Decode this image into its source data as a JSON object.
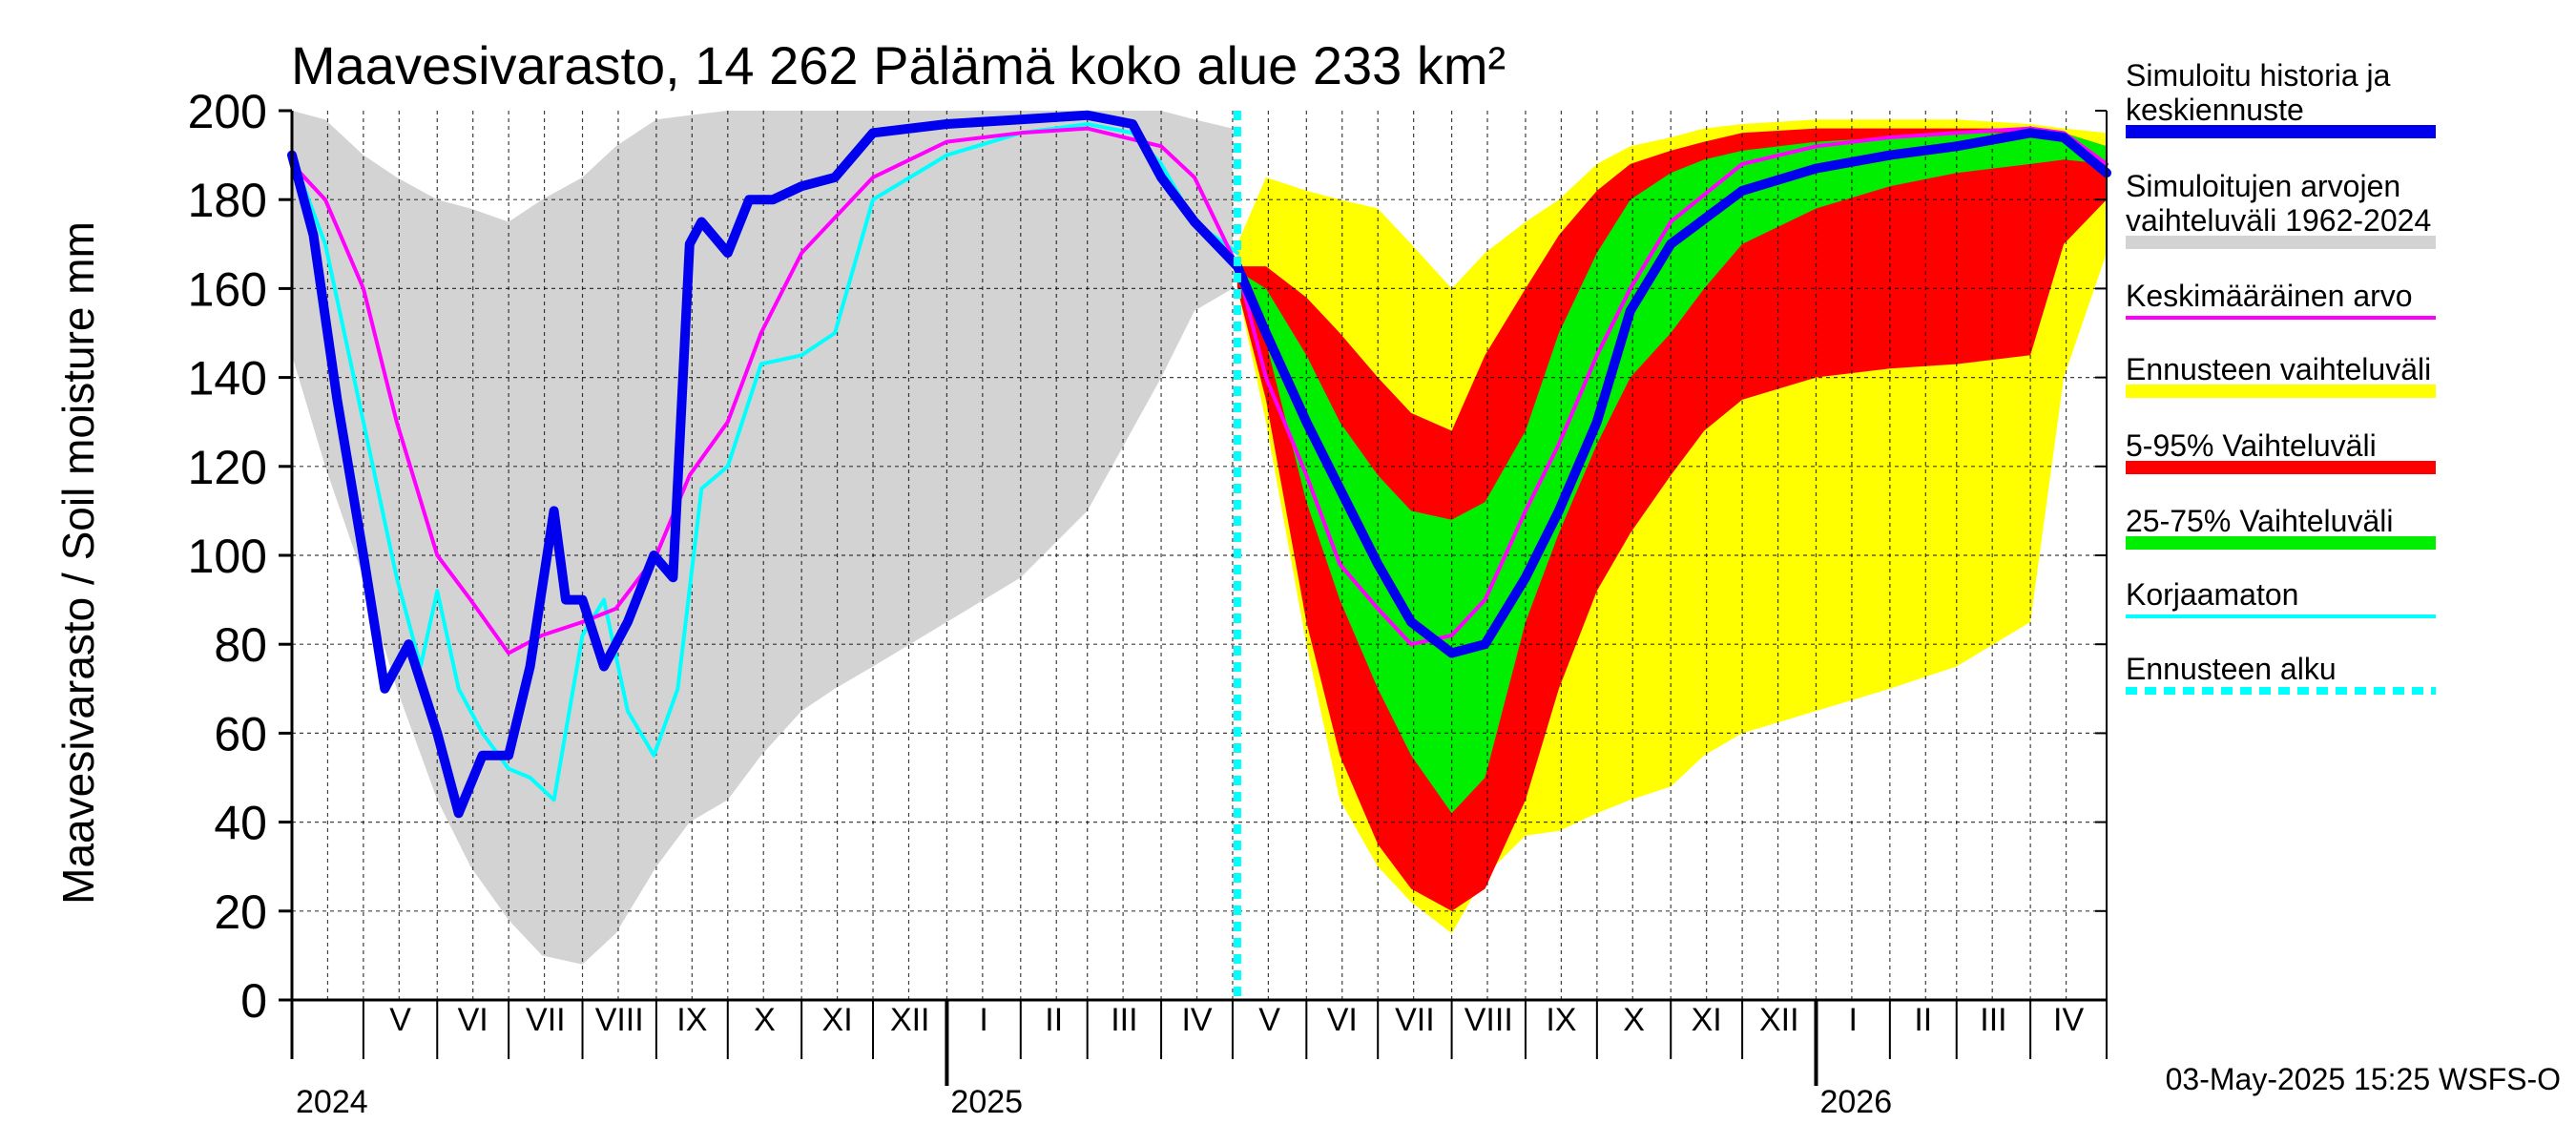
{
  "chart_data": {
    "type": "area",
    "title": "Maavesivarasto, 14 262 Pälämä koko alue 233 km²",
    "ylabel": "Maavesivarasto / Soil moisture   mm",
    "ylim": [
      0,
      200
    ],
    "xlim": [
      "2024-04-01",
      "2026-05-03"
    ],
    "grid": true,
    "y_ticks": [
      "0",
      "20",
      "40",
      "60",
      "80",
      "100",
      "120",
      "140",
      "160",
      "180",
      "200"
    ],
    "months": [
      {
        "label": "V",
        "start": "2024-05-01"
      },
      {
        "label": "VI",
        "start": "2024-06-01"
      },
      {
        "label": "VII",
        "start": "2024-07-01"
      },
      {
        "label": "VIII",
        "start": "2024-08-01"
      },
      {
        "label": "IX",
        "start": "2024-09-01"
      },
      {
        "label": "X",
        "start": "2024-10-01"
      },
      {
        "label": "XI",
        "start": "2024-11-01"
      },
      {
        "label": "XII",
        "start": "2024-12-01"
      },
      {
        "label": "I",
        "start": "2025-01-01"
      },
      {
        "label": "II",
        "start": "2025-02-01"
      },
      {
        "label": "III",
        "start": "2025-03-01"
      },
      {
        "label": "IV",
        "start": "2025-04-01"
      },
      {
        "label": "V",
        "start": "2025-05-01"
      },
      {
        "label": "VI",
        "start": "2025-06-01"
      },
      {
        "label": "VII",
        "start": "2025-07-01"
      },
      {
        "label": "VIII",
        "start": "2025-08-01"
      },
      {
        "label": "IX",
        "start": "2025-09-01"
      },
      {
        "label": "X",
        "start": "2025-10-01"
      },
      {
        "label": "XI",
        "start": "2025-11-01"
      },
      {
        "label": "XII",
        "start": "2025-12-01"
      },
      {
        "label": "I",
        "start": "2026-01-01"
      },
      {
        "label": "II",
        "start": "2026-02-01"
      },
      {
        "label": "III",
        "start": "2026-03-01"
      },
      {
        "label": "IV",
        "start": "2026-04-01"
      }
    ],
    "years": [
      {
        "label": "2024",
        "date": "2024-04-01"
      },
      {
        "label": "2025",
        "date": "2025-01-01"
      },
      {
        "label": "2026",
        "date": "2026-01-01"
      }
    ],
    "forecast_start": "2025-05-03",
    "colors": {
      "history": "#0000ee",
      "range_hist": "#d3d3d3",
      "mean": "#ff00ff",
      "forecast_range": "#ffff00",
      "p5_95": "#ff0000",
      "p25_75": "#00ee00",
      "uncorrected": "#00ffff",
      "forecast_start": "#00ffff",
      "grid": "#000000"
    },
    "series": [
      {
        "name": "Simuloitujen arvojen vaihteluväli 1962-2024",
        "kind": "band",
        "x": [
          "2024-04-01",
          "2024-04-15",
          "2024-05-01",
          "2024-05-15",
          "2024-06-01",
          "2024-06-15",
          "2024-07-01",
          "2024-07-15",
          "2024-08-01",
          "2024-08-15",
          "2024-09-01",
          "2024-09-15",
          "2024-10-01",
          "2024-10-15",
          "2024-11-01",
          "2024-11-15",
          "2024-12-01",
          "2025-01-01",
          "2025-02-01",
          "2025-03-01",
          "2025-04-01",
          "2025-04-15",
          "2025-05-01"
        ],
        "low": [
          145,
          120,
          95,
          70,
          45,
          30,
          18,
          10,
          8,
          15,
          30,
          40,
          45,
          55,
          65,
          70,
          75,
          85,
          95,
          110,
          140,
          155,
          160
        ],
        "high": [
          200,
          198,
          190,
          185,
          180,
          178,
          175,
          180,
          185,
          192,
          198,
          199,
          200,
          200,
          200,
          200,
          200,
          200,
          200,
          200,
          200,
          198,
          196
        ]
      },
      {
        "name": "Ennusteen vaihteluväli",
        "kind": "band",
        "x": [
          "2025-05-03",
          "2025-05-15",
          "2025-06-01",
          "2025-06-15",
          "2025-07-01",
          "2025-07-15",
          "2025-08-01",
          "2025-08-15",
          "2025-09-01",
          "2025-09-15",
          "2025-10-01",
          "2025-10-15",
          "2025-11-01",
          "2025-11-15",
          "2025-12-01",
          "2026-01-01",
          "2026-02-01",
          "2026-03-01",
          "2026-04-01",
          "2026-04-15",
          "2026-05-03"
        ],
        "low": [
          160,
          130,
          80,
          45,
          30,
          22,
          15,
          28,
          37,
          38,
          42,
          45,
          48,
          55,
          60,
          65,
          70,
          75,
          85,
          140,
          168
        ],
        "high": [
          170,
          185,
          182,
          180,
          178,
          170,
          160,
          168,
          175,
          180,
          188,
          192,
          194,
          196,
          197,
          198,
          198,
          198,
          197,
          196,
          195
        ]
      },
      {
        "name": "5-95% Vaihteluväli",
        "kind": "band",
        "x": [
          "2025-05-03",
          "2025-05-15",
          "2025-06-01",
          "2025-06-15",
          "2025-07-01",
          "2025-07-15",
          "2025-08-01",
          "2025-08-15",
          "2025-09-01",
          "2025-09-15",
          "2025-10-01",
          "2025-10-15",
          "2025-11-01",
          "2025-11-15",
          "2025-12-01",
          "2026-01-01",
          "2026-02-01",
          "2026-03-01",
          "2026-04-01",
          "2026-04-15",
          "2026-05-03"
        ],
        "low": [
          160,
          135,
          85,
          55,
          35,
          25,
          20,
          25,
          45,
          70,
          92,
          105,
          118,
          128,
          135,
          140,
          142,
          143,
          145,
          170,
          180
        ],
        "high": [
          165,
          165,
          158,
          150,
          140,
          132,
          128,
          145,
          160,
          172,
          182,
          188,
          191,
          193,
          195,
          196,
          196,
          196,
          196,
          195,
          192
        ]
      },
      {
        "name": "25-75% Vaihteluväli",
        "kind": "band",
        "x": [
          "2025-05-03",
          "2025-05-15",
          "2025-06-01",
          "2025-06-15",
          "2025-07-01",
          "2025-07-15",
          "2025-08-01",
          "2025-08-15",
          "2025-09-01",
          "2025-09-15",
          "2025-10-01",
          "2025-10-15",
          "2025-11-01",
          "2025-11-15",
          "2025-12-01",
          "2026-01-01",
          "2026-02-01",
          "2026-03-01",
          "2026-04-01",
          "2026-04-15",
          "2026-05-03"
        ],
        "low": [
          162,
          148,
          112,
          90,
          70,
          55,
          42,
          50,
          85,
          105,
          125,
          140,
          150,
          160,
          170,
          178,
          183,
          186,
          188,
          189,
          188
        ],
        "high": [
          164,
          160,
          145,
          130,
          118,
          110,
          108,
          112,
          128,
          150,
          168,
          180,
          186,
          189,
          191,
          193,
          194,
          195,
          195,
          195,
          192
        ]
      },
      {
        "name": "Korjaamaton",
        "kind": "line",
        "x": [
          "2024-04-01",
          "2024-04-15",
          "2024-05-01",
          "2024-05-15",
          "2024-05-25",
          "2024-06-01",
          "2024-06-10",
          "2024-06-20",
          "2024-07-01",
          "2024-07-10",
          "2024-07-20",
          "2024-08-01",
          "2024-08-10",
          "2024-08-20",
          "2024-08-31",
          "2024-09-10",
          "2024-09-20",
          "2024-10-01",
          "2024-10-15",
          "2024-11-01",
          "2024-11-15",
          "2024-12-01",
          "2025-01-01",
          "2025-02-01",
          "2025-03-01",
          "2025-03-20",
          "2025-04-01",
          "2025-04-15",
          "2025-05-03"
        ],
        "y": [
          190,
          170,
          130,
          95,
          75,
          92,
          70,
          60,
          52,
          50,
          45,
          82,
          90,
          65,
          55,
          70,
          115,
          120,
          143,
          145,
          150,
          180,
          190,
          195,
          197,
          195,
          188,
          175,
          168
        ]
      },
      {
        "name": "Keskimääräinen arvo",
        "kind": "line",
        "x": [
          "2024-04-01",
          "2024-04-15",
          "2024-05-01",
          "2024-05-15",
          "2024-06-01",
          "2024-06-15",
          "2024-07-01",
          "2024-07-15",
          "2024-08-01",
          "2024-08-15",
          "2024-09-01",
          "2024-09-15",
          "2024-10-01",
          "2024-10-15",
          "2024-11-01",
          "2024-12-01",
          "2025-01-01",
          "2025-02-01",
          "2025-03-01",
          "2025-04-01",
          "2025-04-15",
          "2025-05-03",
          "2025-05-15",
          "2025-06-01",
          "2025-06-15",
          "2025-07-01",
          "2025-07-15",
          "2025-08-01",
          "2025-08-15",
          "2025-09-01",
          "2025-09-15",
          "2025-10-01",
          "2025-10-15",
          "2025-11-01",
          "2025-12-01",
          "2026-01-01",
          "2026-02-01",
          "2026-03-01",
          "2026-04-01",
          "2026-04-15",
          "2026-05-03"
        ],
        "y": [
          188,
          180,
          160,
          130,
          100,
          90,
          78,
          82,
          85,
          88,
          100,
          118,
          130,
          150,
          168,
          185,
          193,
          195,
          196,
          192,
          185,
          165,
          140,
          118,
          98,
          88,
          80,
          82,
          90,
          110,
          125,
          145,
          160,
          175,
          188,
          192,
          194,
          195,
          196,
          195,
          188
        ]
      },
      {
        "name": "Simuloitu historia ja keskiennuste",
        "kind": "line",
        "x": [
          "2024-04-01",
          "2024-04-10",
          "2024-04-20",
          "2024-05-01",
          "2024-05-10",
          "2024-05-20",
          "2024-06-01",
          "2024-06-10",
          "2024-06-20",
          "2024-07-01",
          "2024-07-10",
          "2024-07-20",
          "2024-07-25",
          "2024-08-01",
          "2024-08-10",
          "2024-08-20",
          "2024-08-31",
          "2024-09-08",
          "2024-09-15",
          "2024-09-20",
          "2024-10-01",
          "2024-10-10",
          "2024-10-20",
          "2024-11-01",
          "2024-11-15",
          "2024-12-01",
          "2025-01-01",
          "2025-02-01",
          "2025-03-01",
          "2025-03-20",
          "2025-04-01",
          "2025-04-15",
          "2025-05-03",
          "2025-05-15",
          "2025-06-01",
          "2025-06-15",
          "2025-07-01",
          "2025-07-15",
          "2025-08-01",
          "2025-08-15",
          "2025-09-01",
          "2025-09-15",
          "2025-10-01",
          "2025-10-15",
          "2025-11-01",
          "2025-12-01",
          "2026-01-01",
          "2026-02-01",
          "2026-03-01",
          "2026-04-01",
          "2026-04-15",
          "2026-05-03"
        ],
        "y": [
          190,
          172,
          135,
          100,
          70,
          80,
          60,
          42,
          55,
          55,
          75,
          110,
          90,
          90,
          75,
          85,
          100,
          95,
          170,
          175,
          168,
          180,
          180,
          183,
          185,
          195,
          197,
          198,
          199,
          197,
          185,
          175,
          165,
          150,
          130,
          115,
          98,
          85,
          78,
          80,
          95,
          110,
          130,
          155,
          170,
          182,
          187,
          190,
          192,
          195,
          194,
          186
        ]
      }
    ],
    "legend": [
      {
        "label": "Simuloitu historia ja keskiennuste",
        "color": "#0000ee",
        "style": "solid-thick"
      },
      {
        "label": "Simuloitujen arvojen vaihteluväli 1962-2024",
        "color": "#d3d3d3",
        "style": "solid-thick"
      },
      {
        "label": "Keskimääräinen arvo",
        "color": "#ff00ff",
        "style": "solid"
      },
      {
        "label": "Ennusteen vaihteluväli",
        "color": "#ffff00",
        "style": "solid-thick"
      },
      {
        "label": "5-95% Vaihteluväli",
        "color": "#ff0000",
        "style": "solid-thick"
      },
      {
        "label": "25-75% Vaihteluväli",
        "color": "#00ee00",
        "style": "solid-thick"
      },
      {
        "label": "Korjaamaton",
        "color": "#00ffff",
        "style": "solid"
      },
      {
        "label": "Ennusteen alku",
        "color": "#00ffff",
        "style": "dashed"
      }
    ],
    "legend_placement": "right",
    "footer": "03-May-2025 15:25 WSFS-O"
  }
}
